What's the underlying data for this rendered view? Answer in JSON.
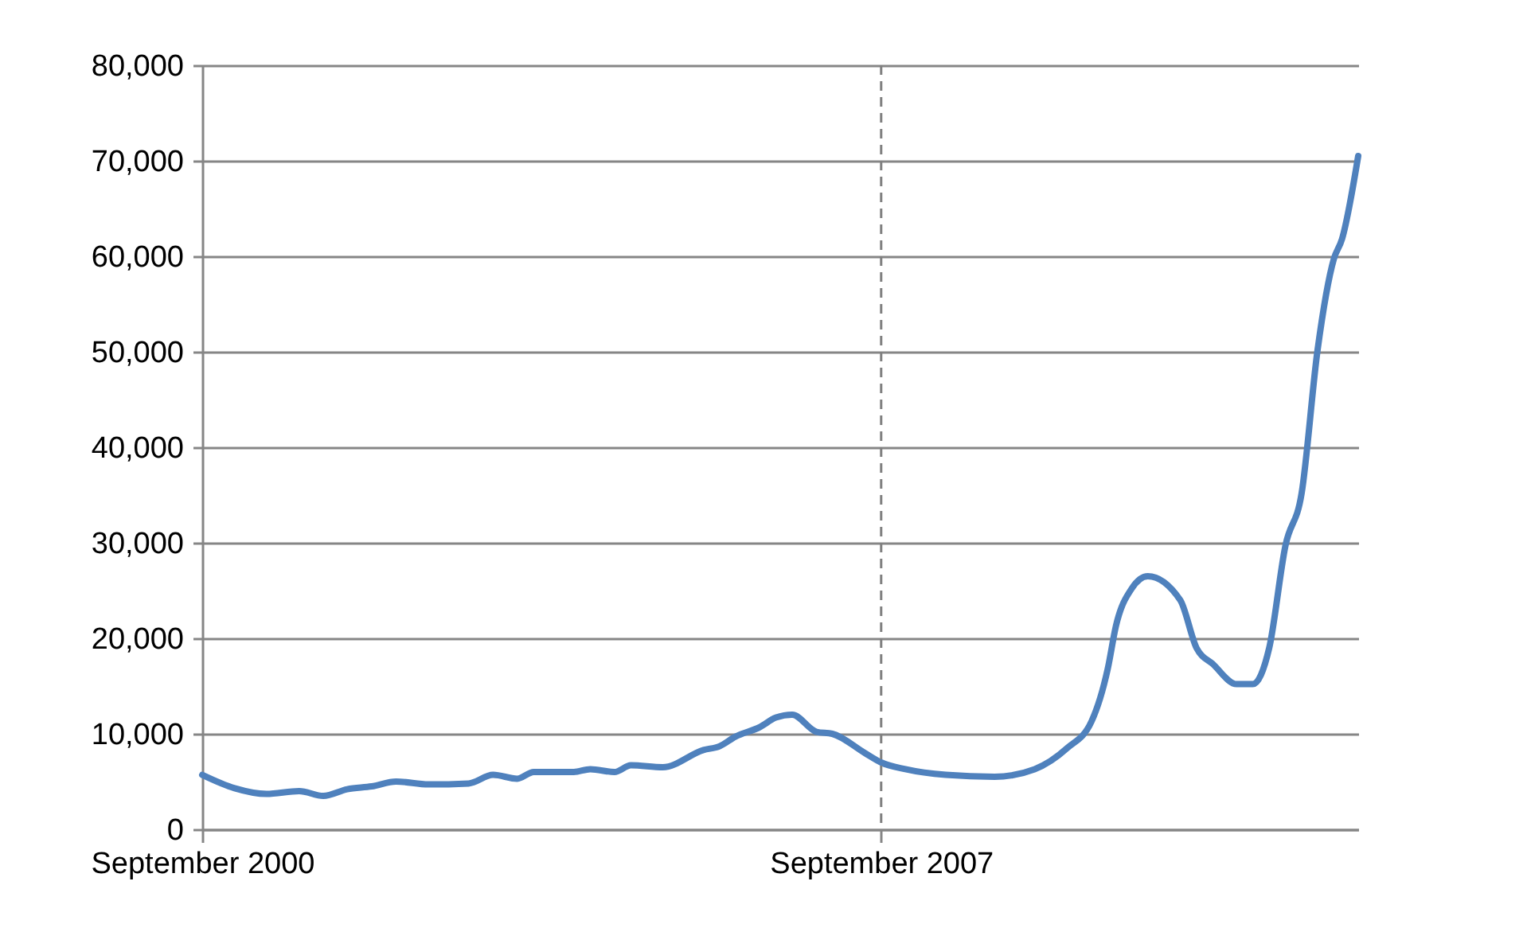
{
  "chart_data": {
    "type": "line",
    "x": [
      "2000-09",
      "2001-01",
      "2001-05",
      "2001-09",
      "2001-12",
      "2002-03",
      "2002-06",
      "2002-09",
      "2003-01",
      "2003-06",
      "2003-09",
      "2003-12",
      "2004-02",
      "2004-07",
      "2004-09",
      "2004-12",
      "2005-02",
      "2005-06",
      "2005-11",
      "2006-01",
      "2006-03",
      "2006-06",
      "2006-08",
      "2006-10",
      "2007-01",
      "2007-03",
      "2007-07",
      "2007-09",
      "2007-12",
      "2008-05",
      "2008-11",
      "2009-04",
      "2009-08",
      "2009-11",
      "2010-01",
      "2010-02",
      "2010-04",
      "2010-06",
      "2010-10",
      "2010-12",
      "2011-02",
      "2011-05",
      "2011-07",
      "2011-09",
      "2011-11",
      "2012-01",
      "2012-03",
      "2012-05",
      "2012-06",
      "2012-08"
    ],
    "series": [
      {
        "color": "#4f81bd",
        "values": [
          5700,
          4300,
          3700,
          4000,
          3500,
          4200,
          4500,
          5000,
          4700,
          4800,
          5700,
          5300,
          6000,
          6000,
          6300,
          6000,
          6700,
          6500,
          8300,
          8700,
          9700,
          10700,
          11700,
          12000,
          10200,
          10000,
          8000,
          7000,
          6300,
          5700,
          5500,
          6300,
          8500,
          11300,
          16800,
          21300,
          25200,
          26500,
          24000,
          19000,
          17300,
          15200,
          15200,
          19000,
          29700,
          35200,
          50200,
          59700,
          61800,
          70500
        ]
      }
    ],
    "xlim": [
      "2000-09",
      "2012-08"
    ],
    "xticks": [
      {
        "value": "2000-09",
        "label": "September 2000"
      },
      {
        "value": "2007-09",
        "label": "September 2007"
      }
    ],
    "ylim": [
      0,
      80000
    ],
    "yticks": [
      0,
      {
        "value": 10000,
        "label": "10,000"
      },
      {
        "value": 20000,
        "label": "20,000"
      },
      {
        "value": 30000,
        "label": "30,000"
      },
      {
        "value": 40000,
        "label": "40,000"
      },
      {
        "value": 50000,
        "label": "50,000"
      },
      {
        "value": 60000,
        "label": "60,000"
      },
      {
        "value": 70000,
        "label": "70,000"
      },
      {
        "value": 80000,
        "label": "80,000"
      }
    ],
    "grid": "y",
    "legend": false,
    "marker": "none",
    "line_style": "solid",
    "ref_lines": [
      {
        "axis": "x",
        "value": "2007-09",
        "color": "#808080",
        "line_style": "dashed"
      }
    ]
  }
}
